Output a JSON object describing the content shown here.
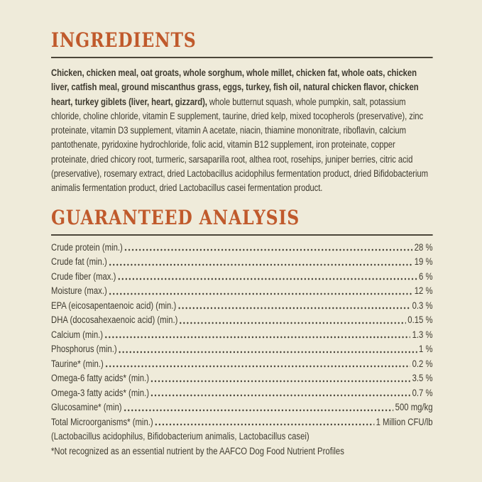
{
  "page": {
    "background_color": "#EFEBDA",
    "accent_color": "#C05A2C",
    "text_color": "#3F3B30",
    "rule_color": "#4B4639"
  },
  "ingredients": {
    "heading": "INGREDIENTS",
    "bold_text": "Chicken, chicken meal, oat groats, whole sorghum, whole millet, chicken fat, whole oats, chicken liver, catfish meal, ground miscanthus grass, eggs, turkey, fish oil, natural chicken flavor, chicken heart, turkey giblets (liver, heart, gizzard),",
    "regular_text": " whole butternut squash, whole pumpkin, salt, potassium chloride, choline chloride, vitamin E supplement, taurine, dried kelp, mixed tocopherols (preservative), zinc proteinate, vitamin D3 supplement, vitamin A acetate, niacin, thiamine mononitrate, riboflavin, calcium pantothenate, pyridoxine hydrochloride, folic acid, vitamin B12 supplement, iron proteinate, copper proteinate, dried chicory root, turmeric, sarsaparilla root, althea root, rosehips, juniper berries, citric acid (preservative), rosemary extract, dried Lactobacillus acidophilus fermentation product, dried Bifidobacterium animalis fermentation product, dried Lactobacillus casei fermentation product."
  },
  "analysis": {
    "heading": "GUARANTEED ANALYSIS",
    "rows": [
      {
        "label": "Crude protein (min.)",
        "value": "28 %"
      },
      {
        "label": "Crude fat (min.)",
        "value": "19 %"
      },
      {
        "label": "Crude fiber (max.)",
        "value": "6 %"
      },
      {
        "label": "Moisture (max.)",
        "value": "12 %"
      },
      {
        "label": "EPA (eicosapentaenoic acid) (min.)",
        "value": "0.3 %"
      },
      {
        "label": "DHA (docosahexaenoic acid) (min.)",
        "value": "0.15 %"
      },
      {
        "label": "Calcium (min.)",
        "value": "1.3 %"
      },
      {
        "label": "Phosphorus (min.)",
        "value": "1 %"
      },
      {
        "label": "Taurine* (min.)",
        "value": "0.2 %"
      },
      {
        "label": "Omega-6 fatty acids* (min.)",
        "value": "3.5 %"
      },
      {
        "label": "Omega-3 fatty acids* (min.)",
        "value": "0.7 %"
      },
      {
        "label": "Glucosamine* (min)",
        "value": "500 mg/kg"
      },
      {
        "label": "Total Microorganisms* (min.)",
        "value": "1 Million CFU/lb"
      }
    ],
    "microorganisms_detail": "(Lactobacillus acidophilus, Bifidobacterium animalis, Lactobacillus casei)",
    "footnote": "*Not recognized as an essential nutrient by the AAFCO Dog Food Nutrient Profiles"
  }
}
